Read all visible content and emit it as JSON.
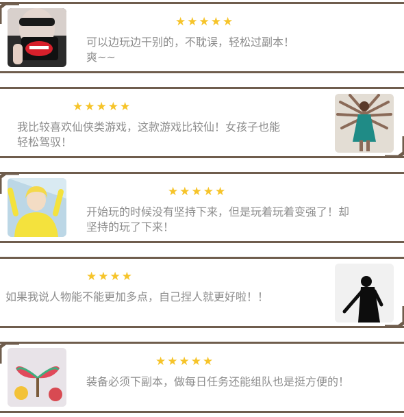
{
  "reviews": [
    {
      "rating": 5,
      "stars": "★★★★★",
      "text": "可以边玩边干别的，不耽误，轻松过副本！\n爽~~",
      "avatar_icon": "woman-sunglasses-phone-photo"
    },
    {
      "rating": 5,
      "stars": "★★★★★",
      "text": "我比较喜欢仙侠类游戏，这款游戏比较仙！女孩子也能\n轻松驾驭！",
      "avatar_icon": "multi-arm-dancer-photo"
    },
    {
      "rating": 5,
      "stars": "★★★★★",
      "text": "开始玩的时候没有坚持下来，但是玩着玩着变强了！却\n坚持的玩了下来！",
      "avatar_icon": "cartoon-girl-photo"
    },
    {
      "rating": 4,
      "stars": "★★★★",
      "text": "如果我说人物能不能更加多点，自己捏人就更好啦！！",
      "avatar_icon": "silhouette-man-photo"
    },
    {
      "rating": 5,
      "stars": "★★★★★",
      "text": "装备必须下副本，做每日任务还能组队也是挺方便的！",
      "avatar_icon": "cartoon-fruit-photo"
    }
  ],
  "colors": {
    "border": "#6f5d4d",
    "star": "#f6c42a",
    "text": "#8d8d8d"
  }
}
